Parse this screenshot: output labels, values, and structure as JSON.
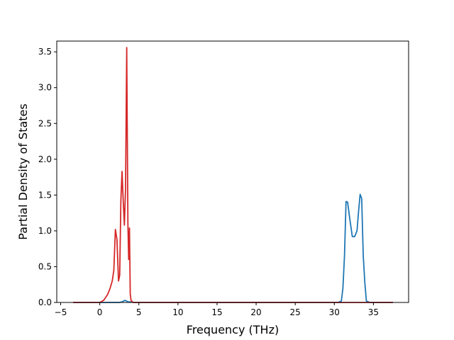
{
  "chart_data": {
    "type": "line",
    "title": "",
    "xlabel": "Frequency (THz)",
    "ylabel": "Partial Density of States",
    "xlim": [
      -5.5,
      39.5
    ],
    "ylim": [
      0,
      3.5
    ],
    "grid": false,
    "x_ticks": [
      -5,
      0,
      5,
      10,
      15,
      20,
      25,
      30,
      35
    ],
    "x_tick_labels": [
      "−5",
      "0",
      "5",
      "10",
      "15",
      "20",
      "25",
      "30",
      "35"
    ],
    "y_ticks": [
      0.0,
      0.5,
      1.0,
      1.5,
      2.0,
      2.5,
      3.0,
      3.5
    ],
    "y_tick_labels": [
      "0.0",
      "0.5",
      "1.0",
      "1.5",
      "2.0",
      "2.5",
      "3.0",
      "3.5"
    ],
    "series": [
      {
        "color": "#1f77b4",
        "x": [
          -3.4,
          0,
          2.0,
          2.5,
          2.9,
          3.2,
          3.6,
          4.5,
          5.0,
          30.5,
          30.9,
          31.1,
          31.3,
          31.5,
          31.7,
          32.0,
          32.3,
          32.6,
          32.9,
          33.1,
          33.3,
          33.5,
          33.7,
          33.9,
          34.1,
          34.5,
          37.5
        ],
        "y": [
          0,
          0,
          0,
          0,
          0.01,
          0.03,
          0.01,
          0,
          0,
          0,
          0.02,
          0.2,
          0.65,
          1.41,
          1.4,
          1.15,
          0.92,
          0.92,
          1.0,
          1.27,
          1.51,
          1.45,
          0.65,
          0.28,
          0.02,
          0,
          0
        ]
      },
      {
        "color": "#d62728",
        "x": [
          -3.4,
          0,
          0.5,
          1.0,
          1.3,
          1.6,
          1.8,
          2.0,
          2.2,
          2.4,
          2.55,
          2.7,
          2.85,
          3.0,
          3.15,
          3.3,
          3.45,
          3.6,
          3.7,
          3.8,
          3.9,
          4.0,
          4.15,
          4.3,
          4.5,
          5.0,
          37.5
        ],
        "y": [
          0,
          0,
          0.03,
          0.11,
          0.19,
          0.3,
          0.45,
          1.02,
          0.88,
          0.3,
          0.38,
          1.42,
          1.83,
          1.42,
          1.08,
          1.6,
          3.56,
          1.1,
          0.6,
          1.04,
          0.12,
          0.03,
          0.01,
          0,
          0,
          0,
          0
        ]
      }
    ]
  }
}
